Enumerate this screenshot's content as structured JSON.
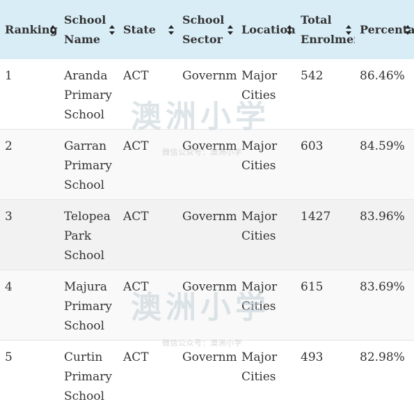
{
  "table": {
    "columns": [
      {
        "label": "Ranking"
      },
      {
        "label": "School Name"
      },
      {
        "label": "State"
      },
      {
        "label": "School Sector"
      },
      {
        "label": "Location"
      },
      {
        "label": "Total Enrolment"
      },
      {
        "label": "Percentage"
      }
    ],
    "rows": [
      {
        "ranking": "1",
        "school": "Aranda Primary School",
        "state": "ACT",
        "sector": "Government",
        "location": "Major Cities",
        "enrolment": "542",
        "percentage": "86.46%"
      },
      {
        "ranking": "2",
        "school": "Garran Primary School",
        "state": "ACT",
        "sector": "Government",
        "location": "Major Cities",
        "enrolment": "603",
        "percentage": "84.59%"
      },
      {
        "ranking": "3",
        "school": "Telopea Park School",
        "state": "ACT",
        "sector": "Government",
        "location": "Major Cities",
        "enrolment": "1427",
        "percentage": "83.96%"
      },
      {
        "ranking": "4",
        "school": "Majura Primary School",
        "state": "ACT",
        "sector": "Government",
        "location": "Major Cities",
        "enrolment": "615",
        "percentage": "83.69%"
      },
      {
        "ranking": "5",
        "school": "Curtin Primary School",
        "state": "ACT",
        "sector": "Government",
        "location": "Major Cities",
        "enrolment": "493",
        "percentage": "82.98%"
      }
    ]
  },
  "watermark": {
    "title": "澳洲小学",
    "subtitle": "微信公众号：澳洲小学"
  },
  "colors": {
    "header_bg": "#d9edf7",
    "row_alt_bg": "#f9f9f9",
    "row_hover_bg": "#f2f2f2",
    "text": "#333333"
  }
}
